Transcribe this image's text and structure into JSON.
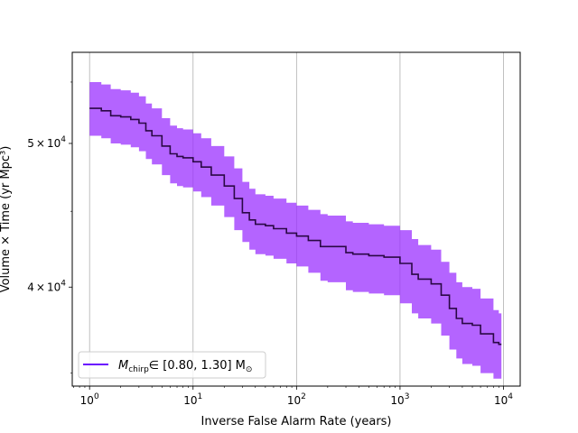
{
  "chart_data": {
    "type": "line",
    "title": "",
    "xlabel": "Inverse False Alarm Rate (years)",
    "ylabel": "Volume × Time (yr Mpc³)",
    "xscale": "log",
    "yscale": "log",
    "xlim": [
      0.68,
      14500
    ],
    "ylim": [
      34300,
      57600
    ],
    "grid": "x-major",
    "legend_position": "lower-left",
    "xticks": [
      {
        "value": 1,
        "base": "10",
        "exp": "0"
      },
      {
        "value": 10,
        "base": "10",
        "exp": "1"
      },
      {
        "value": 100,
        "base": "10",
        "exp": "2"
      },
      {
        "value": 1000,
        "base": "10",
        "exp": "3"
      },
      {
        "value": 10000,
        "base": "10",
        "exp": "4"
      }
    ],
    "yticks": [
      {
        "value": 40000,
        "mant": "4",
        "times": "×",
        "base": "10",
        "exp": "4"
      },
      {
        "value": 50000,
        "mant": "5",
        "times": "×",
        "base": "10",
        "exp": "4"
      }
    ],
    "colors": {
      "band": "#9b30ff",
      "line": "#2a0845",
      "legend_line": "#6a0dff"
    },
    "legend": {
      "symbol": "M",
      "subscript": "chirp",
      "text": "∈ [0.80, 1.30] M",
      "suffix": "⊙"
    },
    "series": [
      {
        "x": [
          1.0,
          1.3,
          1.6,
          2.0,
          2.5,
          3.0,
          3.5,
          4.0,
          5.0,
          6.0,
          7.0,
          8.0,
          10.0,
          12.0,
          15.0,
          20.0,
          25.0,
          30.0,
          35.0,
          40.0,
          50.0,
          60.0,
          80.0,
          100.0,
          130.0,
          170.0,
          200.0,
          300.0,
          350.0,
          500.0,
          700.0,
          1000.0,
          1300.0,
          1500.0,
          2000.0,
          2500.0,
          3000.0,
          3500.0,
          4000.0,
          5000.0,
          6000.0,
          8000.0,
          9000.0
        ],
        "y": [
          52800,
          52600,
          52200,
          52100,
          51900,
          51600,
          51000,
          50600,
          49800,
          49200,
          49000,
          48900,
          48600,
          48200,
          47600,
          46800,
          45900,
          44900,
          44400,
          44100,
          44000,
          43800,
          43500,
          43300,
          43000,
          42600,
          42600,
          42200,
          42100,
          42000,
          41900,
          41500,
          40800,
          40500,
          40200,
          39500,
          38700,
          38100,
          37800,
          37700,
          37200,
          36700,
          36600
        ],
        "lower": [
          50600,
          50400,
          50000,
          49900,
          49700,
          49400,
          48800,
          48400,
          47600,
          47000,
          46800,
          46700,
          46400,
          46000,
          45400,
          44600,
          43700,
          42900,
          42400,
          42100,
          42000,
          41800,
          41500,
          41300,
          40900,
          40400,
          40300,
          39800,
          39700,
          39600,
          39500,
          39000,
          38400,
          38100,
          37800,
          37100,
          36300,
          35800,
          35500,
          35400,
          35000,
          34700,
          34700
        ],
        "upper": [
          55000,
          54800,
          54400,
          54300,
          54100,
          53800,
          53200,
          52800,
          52000,
          51400,
          51200,
          51100,
          50800,
          50400,
          49800,
          49000,
          48100,
          47100,
          46600,
          46200,
          46100,
          45900,
          45600,
          45400,
          45100,
          44800,
          44700,
          44300,
          44200,
          44100,
          44000,
          43700,
          43100,
          42700,
          42400,
          41600,
          40900,
          40300,
          40000,
          39900,
          39300,
          38600,
          38400
        ]
      }
    ]
  }
}
